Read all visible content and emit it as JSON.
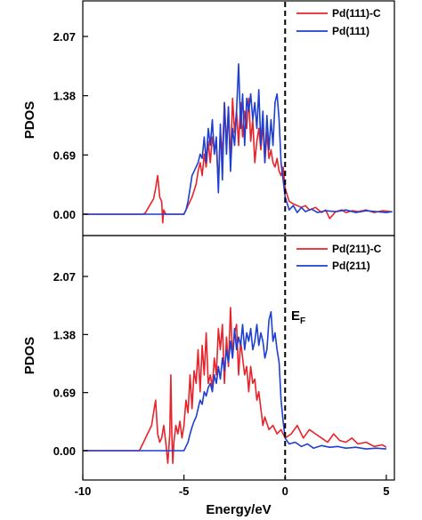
{
  "chart_data": [
    {
      "type": "line",
      "panel": "top",
      "xlabel": "",
      "ylabel": "PDOS",
      "xlim": [
        -10,
        5.4
      ],
      "ylim": [
        -0.2,
        2.6
      ],
      "yticks": [
        "0.00",
        "0.69",
        "1.38",
        "2.07"
      ],
      "grid": false,
      "legend_position": "top-right",
      "fermi_line_x": 0,
      "series": [
        {
          "name": "Pd(111)-C",
          "color": "#e8232a",
          "x": [
            -10,
            -7,
            -6.9,
            -6.7,
            -6.5,
            -6.4,
            -6.3,
            -6.2,
            -6.1,
            -6.05,
            -6.0,
            -5.9,
            -5.8,
            -5.5,
            -5.0,
            -4.9,
            -4.8,
            -4.6,
            -4.4,
            -4.3,
            -4.2,
            -4.1,
            -4.0,
            -3.9,
            -3.8,
            -3.7,
            -3.6,
            -3.5,
            -3.4,
            -3.3,
            -3.2,
            -3.1,
            -3.0,
            -2.9,
            -2.8,
            -2.7,
            -2.6,
            -2.5,
            -2.4,
            -2.3,
            -2.2,
            -2.1,
            -2.0,
            -1.9,
            -1.8,
            -1.7,
            -1.6,
            -1.5,
            -1.4,
            -1.3,
            -1.2,
            -1.1,
            -1.0,
            -0.9,
            -0.8,
            -0.7,
            -0.6,
            -0.5,
            -0.4,
            -0.3,
            -0.2,
            -0.1,
            0.0,
            0.2,
            0.4,
            0.6,
            0.8,
            1.0,
            1.2,
            1.5,
            1.8,
            2.0,
            2.2,
            2.5,
            2.8,
            3.0,
            3.3,
            3.6,
            4.0,
            4.4,
            4.8,
            5.2
          ],
          "y": [
            0.0,
            0.0,
            0.02,
            0.1,
            0.18,
            0.3,
            0.45,
            0.2,
            0.15,
            -0.1,
            0.05,
            0.0,
            0.0,
            0.0,
            0.0,
            0.05,
            0.1,
            0.2,
            0.35,
            0.5,
            0.6,
            0.45,
            0.7,
            0.55,
            0.85,
            0.6,
            0.9,
            0.75,
            0.8,
            0.35,
            0.95,
            0.7,
            1.3,
            0.8,
            1.25,
            0.6,
            1.35,
            0.95,
            1.2,
            0.8,
            1.3,
            0.9,
            1.2,
            1.0,
            1.35,
            0.85,
            1.1,
            0.6,
            0.85,
            1.0,
            0.75,
            1.05,
            0.6,
            0.95,
            0.65,
            0.75,
            0.6,
            0.55,
            0.65,
            0.5,
            0.45,
            0.55,
            0.3,
            0.15,
            0.12,
            0.1,
            0.08,
            0.1,
            0.05,
            0.08,
            0.02,
            0.05,
            -0.05,
            0.03,
            0.05,
            0.02,
            0.04,
            0.03,
            0.05,
            0.02,
            0.04,
            0.03
          ]
        },
        {
          "name": "Pd(111)",
          "color": "#1f3fd1",
          "x": [
            -10,
            -5.0,
            -4.9,
            -4.8,
            -4.7,
            -4.6,
            -4.5,
            -4.4,
            -4.3,
            -4.2,
            -4.1,
            -4.0,
            -3.9,
            -3.8,
            -3.7,
            -3.6,
            -3.5,
            -3.4,
            -3.3,
            -3.2,
            -3.1,
            -3.0,
            -2.9,
            -2.8,
            -2.7,
            -2.6,
            -2.5,
            -2.4,
            -2.3,
            -2.2,
            -2.1,
            -2.0,
            -1.9,
            -1.8,
            -1.7,
            -1.6,
            -1.5,
            -1.4,
            -1.3,
            -1.2,
            -1.1,
            -1.0,
            -0.9,
            -0.8,
            -0.7,
            -0.6,
            -0.5,
            -0.4,
            -0.3,
            -0.2,
            -0.1,
            0.0,
            0.2,
            0.4,
            0.6,
            0.8,
            1.0,
            1.3,
            1.6,
            2.0,
            2.5,
            3.0,
            3.5,
            4.0,
            4.5,
            5.0,
            5.3
          ],
          "y": [
            0.0,
            0.0,
            0.05,
            0.15,
            0.3,
            0.45,
            0.5,
            0.55,
            0.6,
            0.7,
            0.65,
            0.9,
            0.6,
            1.0,
            0.8,
            1.1,
            0.7,
            0.9,
            0.25,
            1.05,
            0.4,
            1.3,
            0.7,
            1.25,
            0.5,
            1.0,
            0.8,
            1.2,
            1.75,
            1.0,
            1.4,
            0.8,
            1.35,
            1.2,
            1.4,
            1.1,
            1.3,
            1.0,
            1.45,
            0.8,
            1.2,
            0.6,
            1.15,
            0.75,
            1.1,
            0.8,
            1.3,
            1.4,
            1.1,
            0.6,
            0.4,
            0.2,
            0.05,
            0.1,
            0.02,
            0.08,
            0.03,
            0.06,
            0.02,
            0.04,
            0.03,
            0.05,
            0.02,
            0.04,
            0.03,
            0.02,
            0.03
          ]
        }
      ]
    },
    {
      "type": "line",
      "panel": "bottom",
      "xlabel": "Energy/eV",
      "ylabel": "PDOS",
      "xlim": [
        -10,
        5.4
      ],
      "ylim": [
        -0.2,
        2.6
      ],
      "xticks": [
        "-10",
        "-5",
        "0",
        "5"
      ],
      "yticks": [
        "0.00",
        "0.69",
        "1.38",
        "2.07"
      ],
      "grid": false,
      "legend_position": "top-right",
      "fermi_line_x": 0,
      "fermi_label": "E",
      "fermi_label_sub": "F",
      "series": [
        {
          "name": "Pd(211)-C",
          "color": "#e8232a",
          "x": [
            -10,
            -7.2,
            -7.0,
            -6.8,
            -6.6,
            -6.5,
            -6.4,
            -6.3,
            -6.2,
            -6.1,
            -6.0,
            -5.9,
            -5.8,
            -5.7,
            -5.65,
            -5.6,
            -5.55,
            -5.5,
            -5.4,
            -5.3,
            -5.2,
            -5.1,
            -5.0,
            -4.9,
            -4.8,
            -4.7,
            -4.6,
            -4.5,
            -4.4,
            -4.3,
            -4.2,
            -4.1,
            -4.0,
            -3.9,
            -3.8,
            -3.7,
            -3.6,
            -3.5,
            -3.4,
            -3.3,
            -3.2,
            -3.1,
            -3.0,
            -2.9,
            -2.8,
            -2.7,
            -2.6,
            -2.5,
            -2.4,
            -2.3,
            -2.2,
            -2.1,
            -2.0,
            -1.9,
            -1.8,
            -1.7,
            -1.6,
            -1.5,
            -1.4,
            -1.3,
            -1.2,
            -1.1,
            -1.0,
            -0.8,
            -0.6,
            -0.4,
            -0.2,
            0.0,
            0.3,
            0.6,
            0.9,
            1.2,
            1.5,
            1.8,
            2.1,
            2.4,
            2.7,
            3.0,
            3.3,
            3.6,
            4.0,
            4.4,
            4.8,
            5.0
          ],
          "y": [
            0.0,
            0.0,
            0.1,
            0.2,
            0.3,
            0.45,
            0.6,
            0.2,
            0.1,
            0.15,
            0.3,
            0.1,
            -0.15,
            0.2,
            0.9,
            0.2,
            -0.15,
            0.1,
            0.3,
            0.2,
            0.35,
            0.15,
            0.3,
            0.6,
            0.45,
            0.9,
            0.5,
            0.95,
            0.8,
            1.2,
            0.7,
            1.25,
            0.9,
            1.4,
            0.8,
            0.9,
            0.75,
            1.1,
            0.9,
            1.45,
            1.2,
            1.5,
            0.8,
            1.35,
            1.0,
            1.7,
            1.1,
            1.4,
            1.5,
            0.9,
            1.3,
            1.1,
            0.9,
            1.0,
            0.7,
            1.0,
            0.8,
            0.85,
            0.6,
            0.7,
            0.5,
            0.3,
            0.4,
            0.25,
            0.3,
            0.2,
            0.25,
            0.15,
            0.2,
            0.3,
            0.15,
            0.25,
            0.2,
            0.15,
            0.1,
            0.2,
            0.12,
            0.1,
            0.15,
            0.08,
            0.1,
            0.05,
            0.07,
            0.04
          ]
        },
        {
          "name": "Pd(211)",
          "color": "#1f3fd1",
          "x": [
            -10,
            -5.0,
            -4.9,
            -4.8,
            -4.7,
            -4.6,
            -4.5,
            -4.4,
            -4.3,
            -4.2,
            -4.1,
            -4.0,
            -3.9,
            -3.8,
            -3.7,
            -3.6,
            -3.5,
            -3.4,
            -3.3,
            -3.2,
            -3.1,
            -3.0,
            -2.9,
            -2.8,
            -2.7,
            -2.6,
            -2.5,
            -2.4,
            -2.3,
            -2.2,
            -2.1,
            -2.0,
            -1.9,
            -1.8,
            -1.7,
            -1.6,
            -1.5,
            -1.4,
            -1.3,
            -1.2,
            -1.1,
            -1.0,
            -0.9,
            -0.8,
            -0.7,
            -0.6,
            -0.5,
            -0.4,
            -0.3,
            -0.2,
            -0.1,
            0.0,
            0.2,
            0.5,
            0.8,
            1.1,
            1.4,
            1.8,
            2.2,
            2.6,
            3.0,
            3.5,
            4.0,
            4.5,
            5.0
          ],
          "y": [
            0.0,
            0.0,
            0.05,
            0.1,
            0.2,
            0.28,
            0.35,
            0.4,
            0.5,
            0.6,
            0.55,
            0.7,
            0.65,
            0.75,
            0.8,
            0.7,
            0.9,
            0.8,
            1.0,
            0.85,
            1.1,
            0.95,
            1.2,
            1.05,
            1.3,
            1.1,
            1.45,
            1.2,
            1.35,
            1.25,
            1.5,
            1.2,
            1.4,
            1.3,
            1.45,
            1.2,
            1.3,
            1.5,
            1.25,
            1.4,
            1.3,
            1.1,
            1.2,
            1.55,
            1.65,
            1.3,
            1.4,
            1.2,
            1.05,
            0.6,
            0.35,
            0.15,
            0.08,
            0.1,
            0.05,
            0.08,
            0.03,
            0.06,
            0.04,
            0.05,
            0.03,
            0.04,
            0.02,
            0.03,
            0.02
          ]
        }
      ]
    }
  ]
}
